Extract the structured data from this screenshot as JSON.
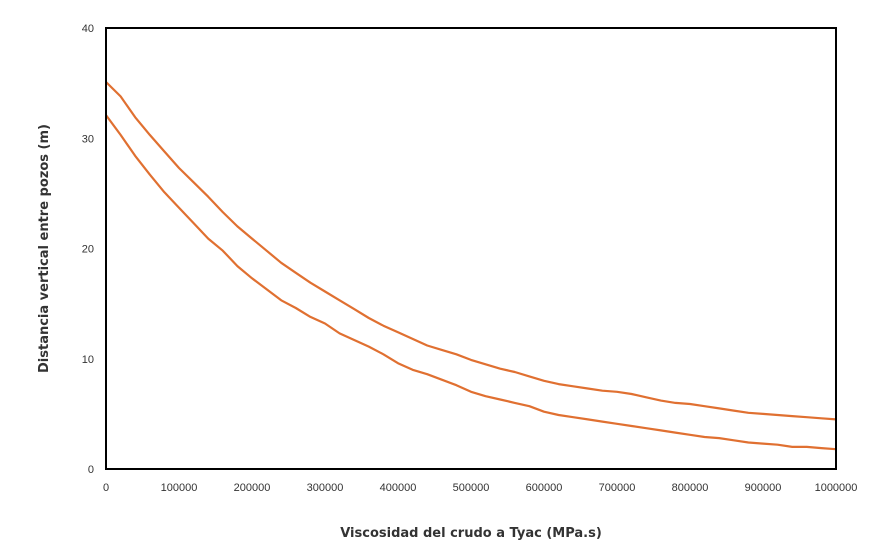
{
  "chart_data": {
    "type": "line",
    "title": "",
    "xlabel": "Viscosidad del crudo a Tyac (MPa.s)",
    "ylabel": "Distancia vertical entre pozos (m)",
    "xlim": [
      0,
      1000000
    ],
    "ylim": [
      0,
      40
    ],
    "x_ticks": [
      0,
      100000,
      200000,
      300000,
      400000,
      500000,
      600000,
      700000,
      800000,
      900000,
      1000000
    ],
    "y_ticks": [
      0,
      10,
      20,
      30,
      40
    ],
    "grid": false,
    "legend": "none",
    "colors": {
      "series": "#e07031",
      "frame": "#000000",
      "text": "#333333"
    },
    "series": [
      {
        "x": [
          0,
          20000,
          40000,
          60000,
          80000,
          100000,
          120000,
          140000,
          160000,
          180000,
          200000,
          220000,
          240000,
          260000,
          280000,
          300000,
          320000,
          340000,
          360000,
          380000,
          400000,
          420000,
          440000,
          460000,
          480000,
          500000,
          520000,
          540000,
          560000,
          580000,
          600000,
          620000,
          640000,
          660000,
          680000,
          700000,
          720000,
          740000,
          760000,
          780000,
          800000,
          820000,
          840000,
          860000,
          880000,
          900000,
          920000,
          940000,
          960000,
          980000,
          1000000
        ],
        "values": [
          35.1,
          33.8,
          31.9,
          30.3,
          28.8,
          27.3,
          26.0,
          24.7,
          23.3,
          22.0,
          20.9,
          19.8,
          18.7,
          17.8,
          16.9,
          16.1,
          15.3,
          14.5,
          13.7,
          13.0,
          12.4,
          11.8,
          11.2,
          10.8,
          10.4,
          9.9,
          9.5,
          9.1,
          8.8,
          8.4,
          8.0,
          7.7,
          7.5,
          7.3,
          7.1,
          7.0,
          6.8,
          6.5,
          6.2,
          6.0,
          5.9,
          5.7,
          5.5,
          5.3,
          5.1,
          5.0,
          4.9,
          4.8,
          4.7,
          4.6,
          4.5
        ]
      },
      {
        "x": [
          0,
          20000,
          40000,
          60000,
          80000,
          100000,
          120000,
          140000,
          160000,
          180000,
          200000,
          220000,
          240000,
          260000,
          280000,
          300000,
          320000,
          340000,
          360000,
          380000,
          400000,
          420000,
          440000,
          460000,
          480000,
          500000,
          520000,
          540000,
          560000,
          580000,
          600000,
          620000,
          640000,
          660000,
          680000,
          700000,
          720000,
          740000,
          760000,
          780000,
          800000,
          820000,
          840000,
          860000,
          880000,
          900000,
          920000,
          940000,
          960000,
          980000,
          1000000
        ],
        "values": [
          32.1,
          30.3,
          28.4,
          26.7,
          25.1,
          23.7,
          22.3,
          20.9,
          19.8,
          18.4,
          17.3,
          16.3,
          15.3,
          14.6,
          13.8,
          13.2,
          12.3,
          11.7,
          11.1,
          10.4,
          9.6,
          9.0,
          8.6,
          8.1,
          7.6,
          7.0,
          6.6,
          6.3,
          6.0,
          5.7,
          5.2,
          4.9,
          4.7,
          4.5,
          4.3,
          4.1,
          3.9,
          3.7,
          3.5,
          3.3,
          3.1,
          2.9,
          2.8,
          2.6,
          2.4,
          2.3,
          2.2,
          2.0,
          2.0,
          1.9,
          1.8
        ]
      }
    ]
  }
}
